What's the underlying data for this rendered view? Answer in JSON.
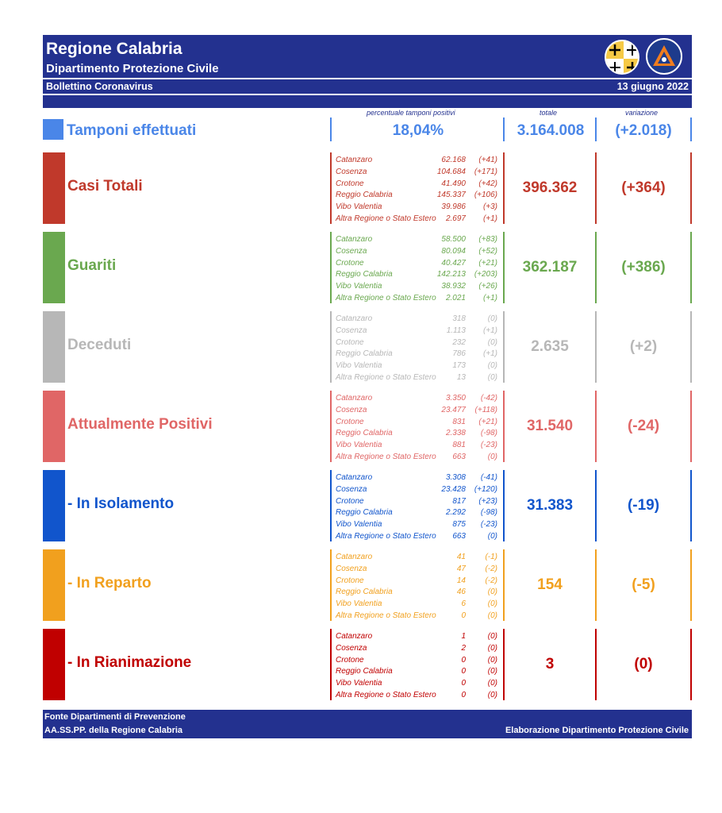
{
  "header": {
    "region": "Regione Calabria",
    "department": "Dipartimento Protezione Civile",
    "bulletin": "Bollettino Coronavirus",
    "date": "13 giugno 2022"
  },
  "columns": {
    "positivity": "percentuale tamponi positivi",
    "total": "totale",
    "variation": "variazione"
  },
  "tamponi": {
    "label": "Tamponi effettuati",
    "positivity": "18,04%",
    "total": "3.164.008",
    "variation": "(+2.018)",
    "color": "#4a86e8"
  },
  "colors": {
    "brand": "#23318f"
  },
  "sections": [
    {
      "label": "Casi Totali",
      "color": "#c0392b",
      "total": "396.362",
      "variation": "(+364)",
      "provinces": [
        [
          "Catanzaro",
          "62.168",
          "(+41)"
        ],
        [
          "Cosenza",
          "104.684",
          "(+171)"
        ],
        [
          "Crotone",
          "41.490",
          "(+42)"
        ],
        [
          "Reggio Calabria",
          "145.337",
          "(+106)"
        ],
        [
          "Vibo Valentia",
          "39.986",
          "(+3)"
        ],
        [
          "Altra Regione o Stato Estero",
          "2.697",
          "(+1)"
        ]
      ]
    },
    {
      "label": "Guariti",
      "color": "#6aa84f",
      "total": "362.187",
      "variation": "(+386)",
      "provinces": [
        [
          "Catanzaro",
          "58.500",
          "(+83)"
        ],
        [
          "Cosenza",
          "80.094",
          "(+52)"
        ],
        [
          "Crotone",
          "40.427",
          "(+21)"
        ],
        [
          "Reggio Calabria",
          "142.213",
          "(+203)"
        ],
        [
          "Vibo Valentia",
          "38.932",
          "(+26)"
        ],
        [
          "Altra Regione o Stato Estero",
          "2.021",
          "(+1)"
        ]
      ]
    },
    {
      "label": "Deceduti",
      "color": "#b7b7b7",
      "total": "2.635",
      "variation": "(+2)",
      "provinces": [
        [
          "Catanzaro",
          "318",
          "(0)"
        ],
        [
          "Cosenza",
          "1.113",
          "(+1)"
        ],
        [
          "Crotone",
          "232",
          "(0)"
        ],
        [
          "Reggio Calabria",
          "786",
          "(+1)"
        ],
        [
          "Vibo Valentia",
          "173",
          "(0)"
        ],
        [
          "Altra Regione o Stato Estero",
          "13",
          "(0)"
        ]
      ]
    },
    {
      "label": "Attualmente Positivi",
      "color": "#e06666",
      "total": "31.540",
      "variation": "(-24)",
      "provinces": [
        [
          "Catanzaro",
          "3.350",
          "(-42)"
        ],
        [
          "Cosenza",
          "23.477",
          "(+118)"
        ],
        [
          "Crotone",
          "831",
          "(+21)"
        ],
        [
          "Reggio Calabria",
          "2.338",
          "(-98)"
        ],
        [
          "Vibo Valentia",
          "881",
          "(-23)"
        ],
        [
          "Altra Regione o Stato Estero",
          "663",
          "(0)"
        ]
      ]
    },
    {
      "label": " - In Isolamento",
      "color": "#1155cc",
      "total": "31.383",
      "variation": "(-19)",
      "provinces": [
        [
          "Catanzaro",
          "3.308",
          "(-41)"
        ],
        [
          "Cosenza",
          "23.428",
          "(+120)"
        ],
        [
          "Crotone",
          "817",
          "(+23)"
        ],
        [
          "Reggio Calabria",
          "2.292",
          "(-98)"
        ],
        [
          "Vibo Valentia",
          "875",
          "(-23)"
        ],
        [
          "Altra Regione o Stato Estero",
          "663",
          "(0)"
        ]
      ]
    },
    {
      "label": " - In Reparto",
      "color": "#f1a01e",
      "total": "154",
      "variation": "(-5)",
      "provinces": [
        [
          "Catanzaro",
          "41",
          "(-1)"
        ],
        [
          "Cosenza",
          "47",
          "(-2)"
        ],
        [
          "Crotone",
          "14",
          "(-2)"
        ],
        [
          "Reggio Calabria",
          "46",
          "(0)"
        ],
        [
          "Vibo Valentia",
          "6",
          "(0)"
        ],
        [
          "Altra Regione o Stato Estero",
          "0",
          "(0)"
        ]
      ]
    },
    {
      "label": " - In Rianimazione",
      "color": "#c00000",
      "total": "3",
      "variation": "(0)",
      "provinces": [
        [
          "Catanzaro",
          "1",
          "(0)"
        ],
        [
          "Cosenza",
          "2",
          "(0)"
        ],
        [
          "Crotone",
          "0",
          "(0)"
        ],
        [
          "Reggio Calabria",
          "0",
          "(0)"
        ],
        [
          "Vibo Valentia",
          "0",
          "(0)"
        ],
        [
          "Altra Regione o Stato Estero",
          "0",
          "(0)"
        ]
      ]
    }
  ],
  "footer": {
    "source_line1": "Fonte Dipartimenti di Prevenzione",
    "source_line2": "AA.SS.PP.  della Regione Calabria",
    "credit": "Elaborazione Dipartimento Protezione Civile"
  }
}
